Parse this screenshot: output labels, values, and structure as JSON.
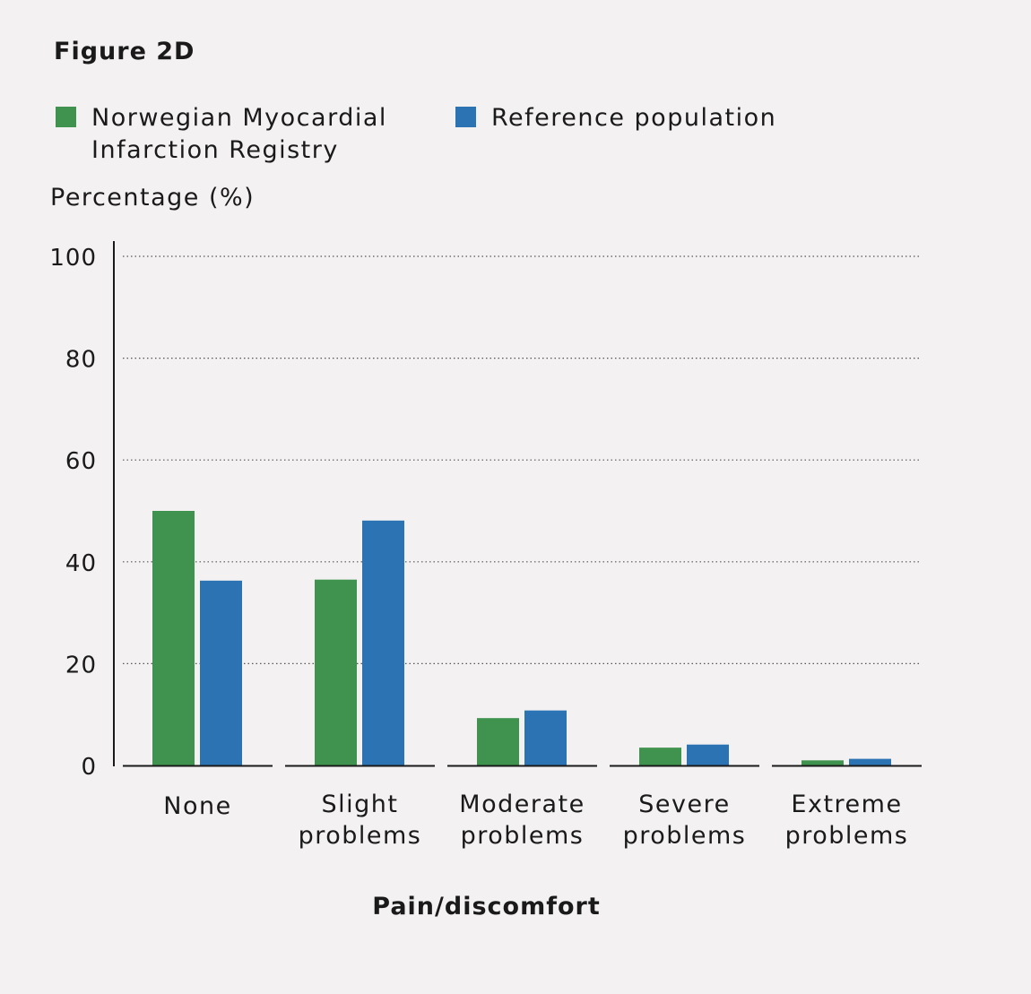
{
  "figure_label": "Figure 2D",
  "colors": {
    "registry": "#3f934e",
    "reference": "#2c73b3",
    "axis": "#1a1a1a",
    "grid": "#555555"
  },
  "chart_data": {
    "type": "bar",
    "title": "Figure 2D",
    "ylabel": "Percentage (%)",
    "xlabel": "Pain/discomfort",
    "ylim": [
      0,
      100
    ],
    "yticks": [
      "0",
      "20",
      "40",
      "60",
      "80",
      "100"
    ],
    "grid": true,
    "legend_position": "top",
    "categories": [
      "None",
      "Slight\nproblems",
      "Moderate\nproblems",
      "Severe\nproblems",
      "Extreme\nproblems"
    ],
    "series": [
      {
        "name": "Norwegian Myocardial\nInfarction Registry",
        "values": [
          50.0,
          36.5,
          9.3,
          3.5,
          1.0
        ]
      },
      {
        "name": "Reference population",
        "values": [
          36.3,
          48.1,
          10.8,
          4.1,
          1.3
        ]
      }
    ]
  }
}
